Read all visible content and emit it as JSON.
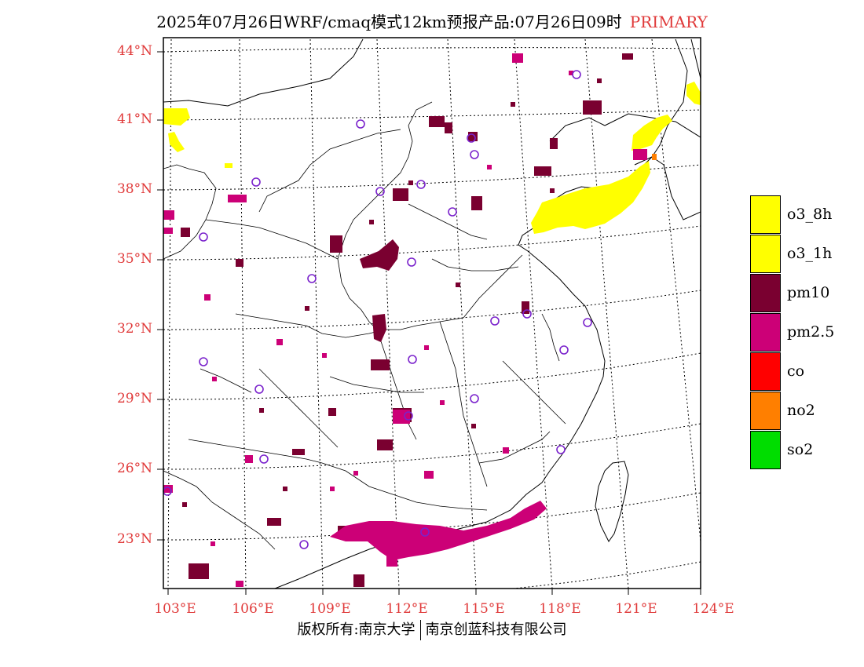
{
  "title": {
    "main": "2025年07月26日WRF/cmaq模式12km预报产品:07月26日09时",
    "tag": "PRIMARY"
  },
  "map": {
    "lat_labels": [
      "44°N",
      "41°N",
      "38°N",
      "35°N",
      "32°N",
      "29°N",
      "26°N",
      "23°N"
    ],
    "lon_labels": [
      "103°E",
      "106°E",
      "109°E",
      "112°E",
      "115°E",
      "118°E",
      "121°E",
      "124°E"
    ],
    "colors": {
      "o3": "#ffff00",
      "pm10": "#7a0030",
      "pm25": "#cc0077",
      "no2": "#ff7f00",
      "city_marker": "#7a22cc",
      "boundary": "#000000",
      "grid": "#000000"
    }
  },
  "legend": {
    "items": [
      {
        "label": "o3_8h",
        "color": "#ffff00"
      },
      {
        "label": "o3_1h",
        "color": "#ffff00"
      },
      {
        "label": "pm10",
        "color": "#7a0030"
      },
      {
        "label": "pm2.5",
        "color": "#cc0077"
      },
      {
        "label": "co",
        "color": "#ff0000"
      },
      {
        "label": "no2",
        "color": "#ff7f00"
      },
      {
        "label": "so2",
        "color": "#00dd00"
      }
    ]
  },
  "footer": {
    "left": "版权所有:南京大学",
    "right": "南京创蓝科技有限公司"
  }
}
